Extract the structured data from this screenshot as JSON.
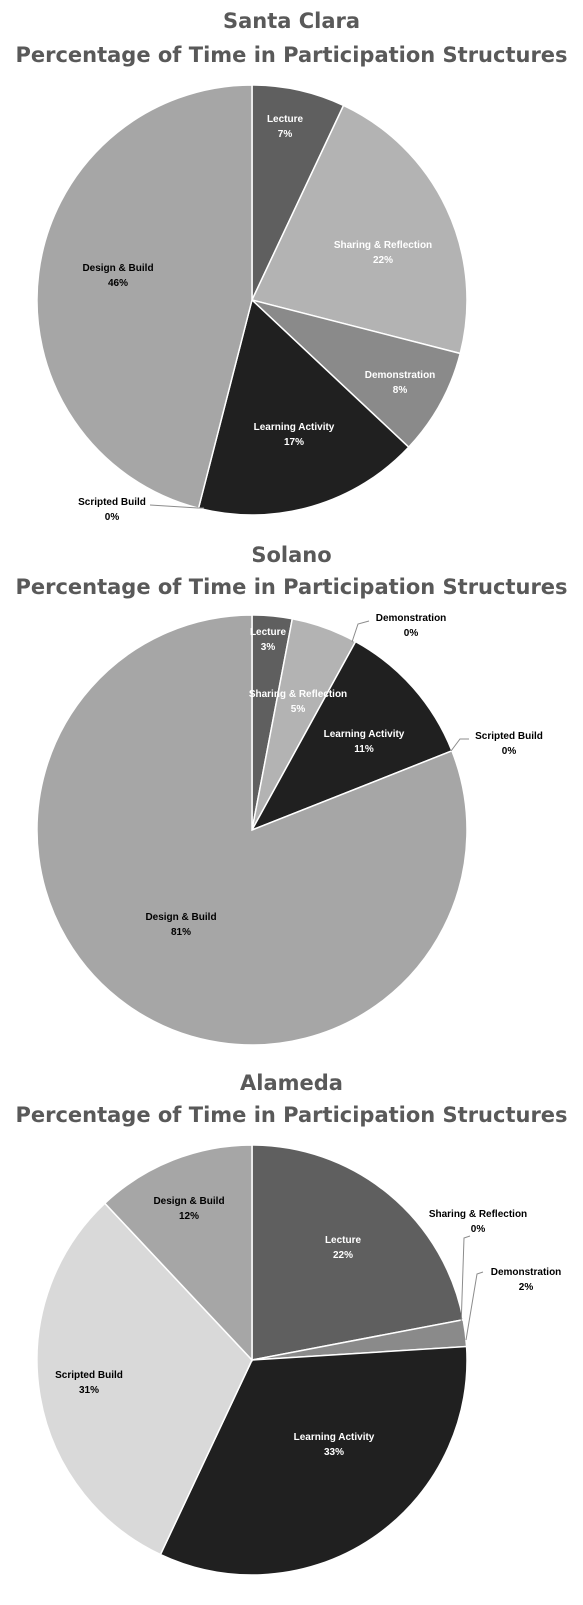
{
  "colors": {
    "Lecture": "#5f5f5f",
    "Sharing & Reflection": "#b3b3b3",
    "Demonstration": "#8a8a8a",
    "Learning Activity": "#202020",
    "Scripted Build": "#d9d9d9",
    "Design & Build": "#a6a6a6",
    "title": "#595959"
  },
  "chart_data": [
    {
      "type": "pie",
      "title": "Santa Clara",
      "subtitle": "Percentage of Time in Participation Structures",
      "categories": [
        "Lecture",
        "Sharing & Reflection",
        "Demonstration",
        "Learning Activity",
        "Scripted Build",
        "Design & Build"
      ],
      "values": [
        7,
        22,
        8,
        17,
        0,
        46
      ],
      "labels": [
        "7%",
        "22%",
        "8%",
        "17%",
        "0%",
        "46%"
      ]
    },
    {
      "type": "pie",
      "title": "Solano",
      "subtitle": "Percentage of Time in Participation Structures",
      "categories": [
        "Lecture",
        "Sharing & Reflection",
        "Demonstration",
        "Learning Activity",
        "Scripted Build",
        "Design & Build"
      ],
      "values": [
        3,
        5,
        0,
        11,
        0,
        81
      ],
      "labels": [
        "3%",
        "5%",
        "0%",
        "11%",
        "0%",
        "81%"
      ]
    },
    {
      "type": "pie",
      "title": "Alameda",
      "subtitle": "Percentage of Time in Participation Structures",
      "categories": [
        "Lecture",
        "Sharing & Reflection",
        "Demonstration",
        "Learning Activity",
        "Scripted Build",
        "Design & Build"
      ],
      "values": [
        22,
        0,
        2,
        33,
        31,
        12
      ],
      "labels": [
        "22%",
        "0%",
        "2%",
        "33%",
        "31%",
        "12%"
      ]
    }
  ]
}
